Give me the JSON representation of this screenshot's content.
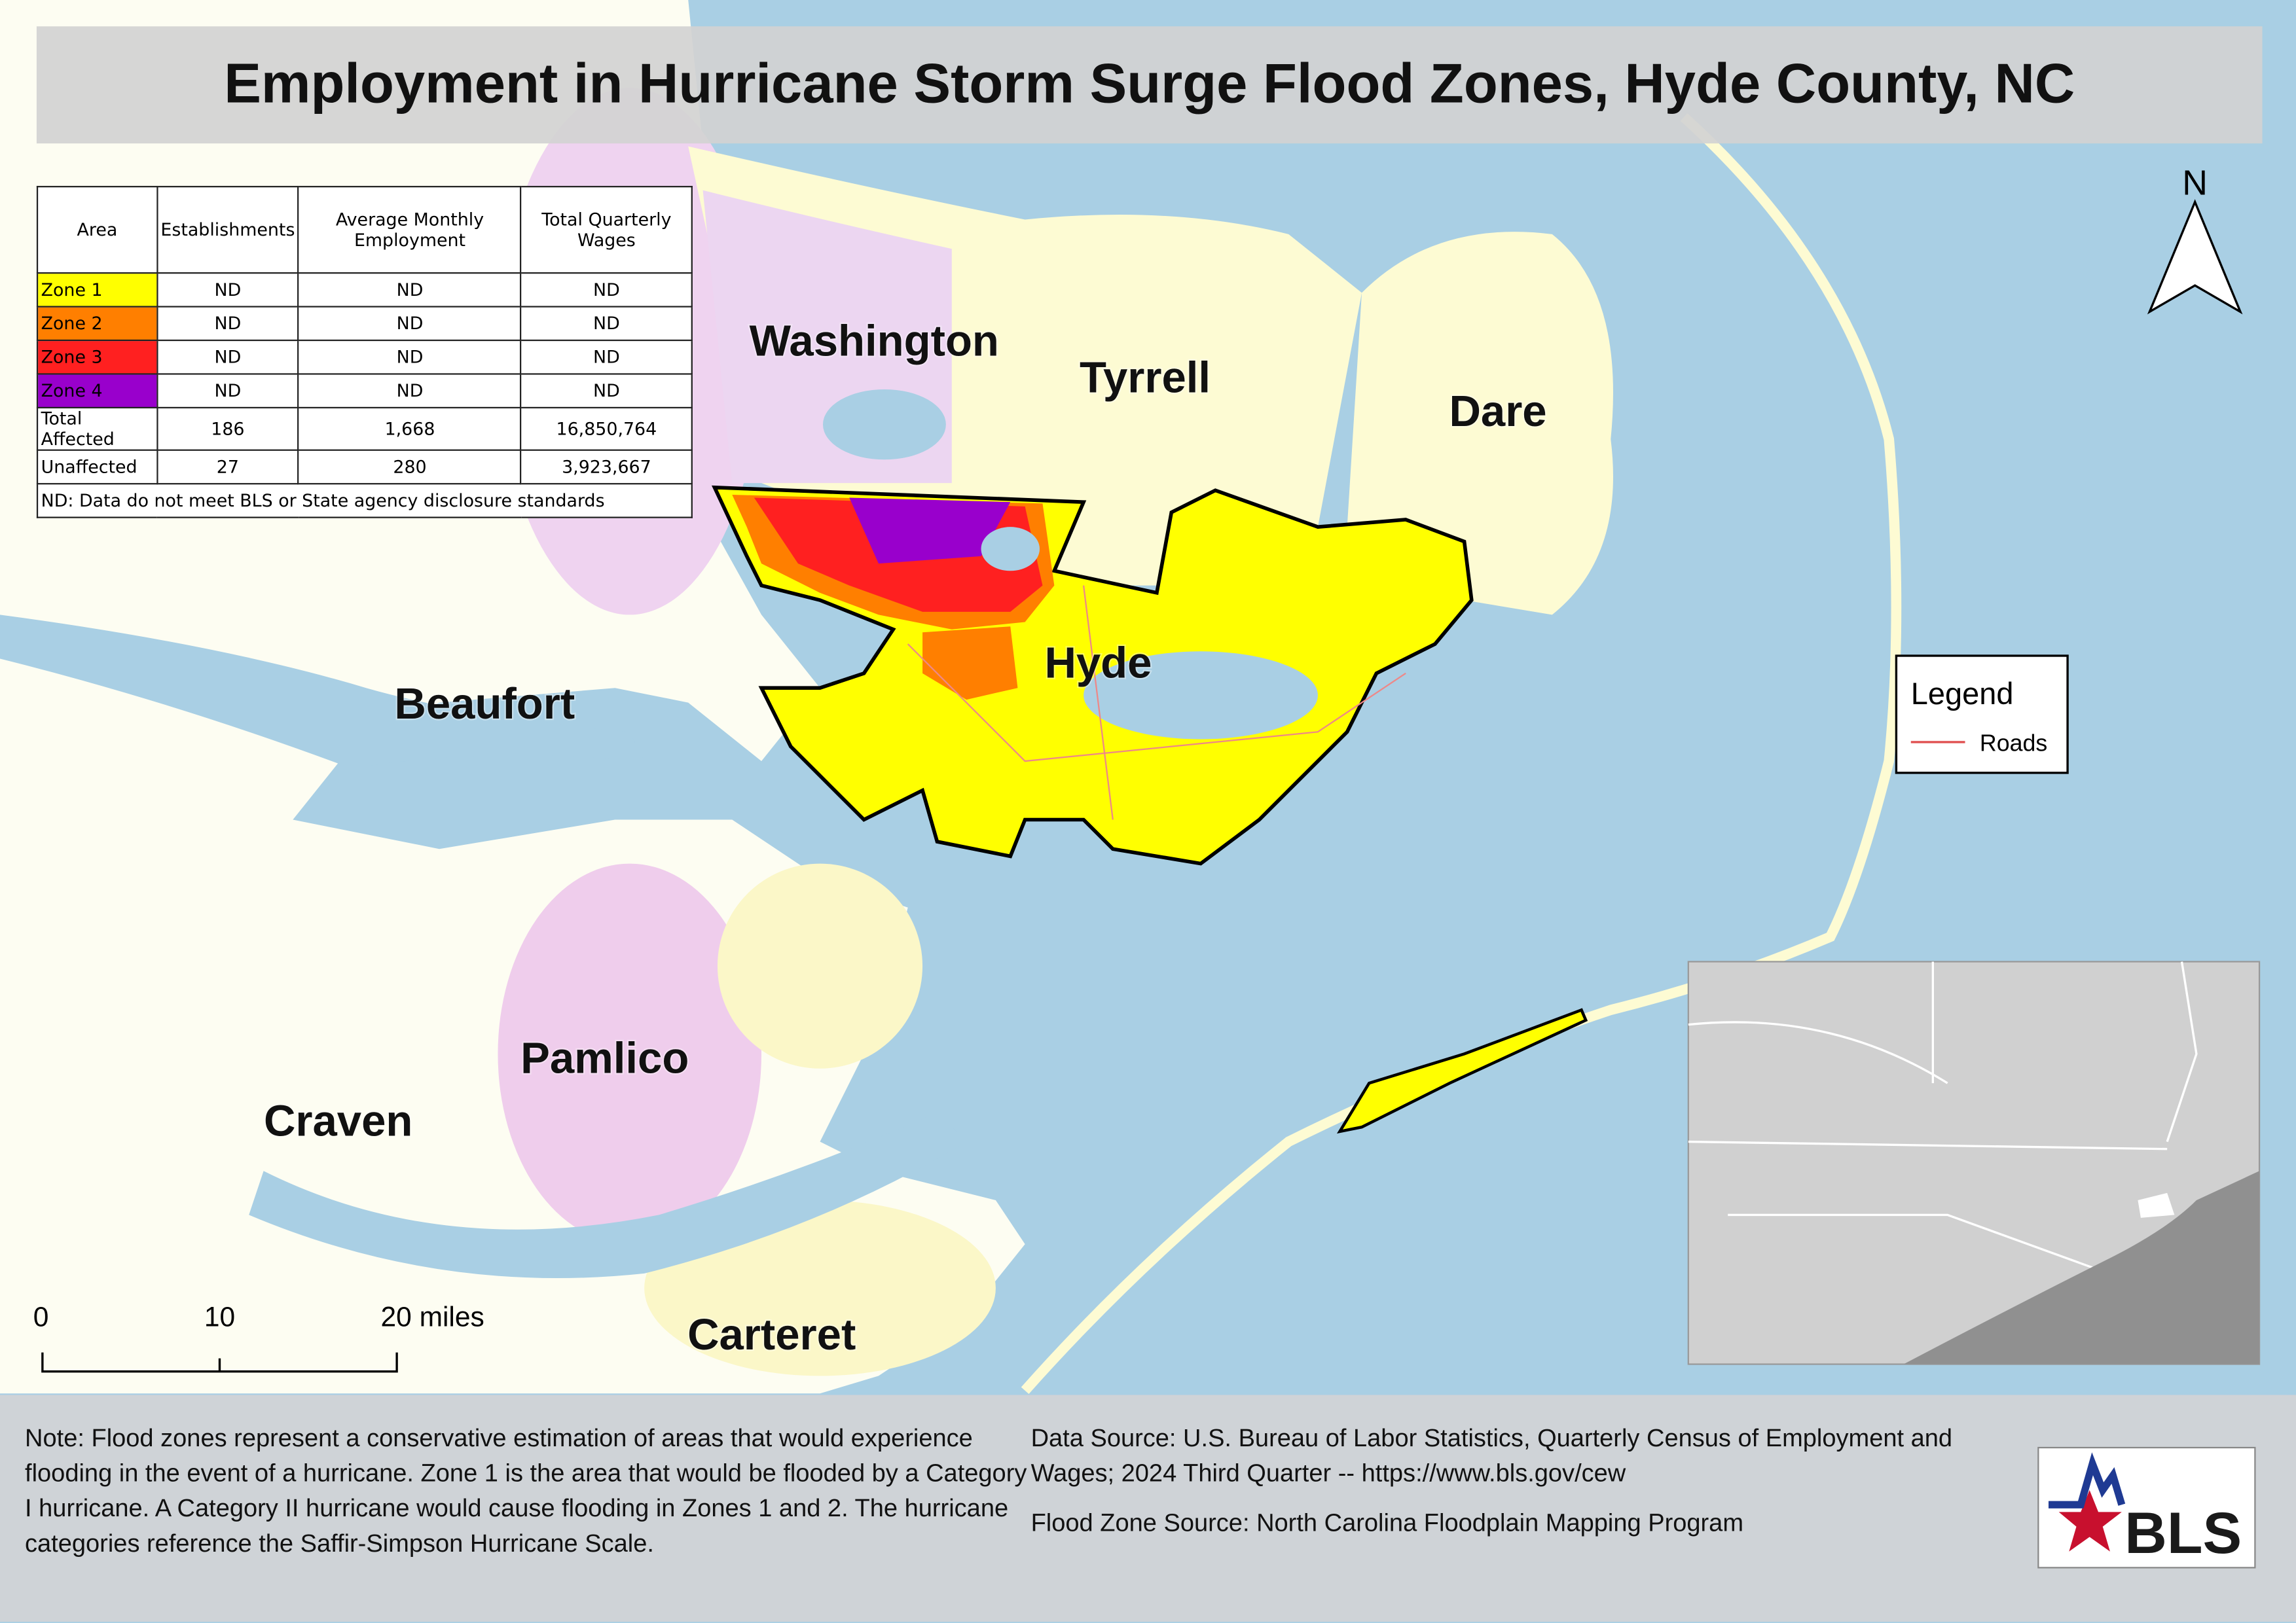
{
  "title": "Employment in Hurricane Storm Surge Flood Zones, Hyde County, NC",
  "table": {
    "header": [
      "Area",
      "Establishments",
      "Average Monthly Employment",
      "Total Quarterly Wages"
    ],
    "rows": [
      [
        "Zone 1",
        "ND",
        "ND",
        "ND"
      ],
      [
        "Zone 2",
        "ND",
        "ND",
        "ND"
      ],
      [
        "Zone 3",
        "ND",
        "ND",
        "ND"
      ],
      [
        "Zone 4",
        "ND",
        "ND",
        "ND"
      ],
      [
        "Total Affected",
        "186",
        "1,668",
        "16,850,764"
      ],
      [
        "Unaffected",
        "27",
        "280",
        "3,923,667"
      ]
    ],
    "footnote": "ND: Data do not meet BLS or State agency disclosure standards"
  },
  "counties": [
    "Washington",
    "Tyrrell",
    "Dare",
    "Hyde",
    "Beaufort",
    "Pamlico",
    "Craven",
    "Carteret"
  ],
  "legend": {
    "title": "Legend",
    "items": [
      "Roads"
    ]
  },
  "north_arrow": "N",
  "scale_bar": [
    "0",
    "10",
    "20 miles"
  ],
  "note": "Note: Flood zones represent a conservative estimation of areas that would experience flooding in the event of a hurricane. Zone 1 is the area that would be flooded by a Category I hurricane. A Category II hurricane would cause flooding in Zones 1 and 2. The hurricane categories reference the Saffir-Simpson Hurricane Scale.",
  "data_source": "Data Source: U.S. Bureau of Labor Statistics, Quarterly Census of Employment and Wages; 2024 Third Quarter -- https://www.bls.gov/cew",
  "flood_zone_source": "Flood Zone Source: North Carolina Floodplain Mapping Program",
  "logo": "BLS"
}
